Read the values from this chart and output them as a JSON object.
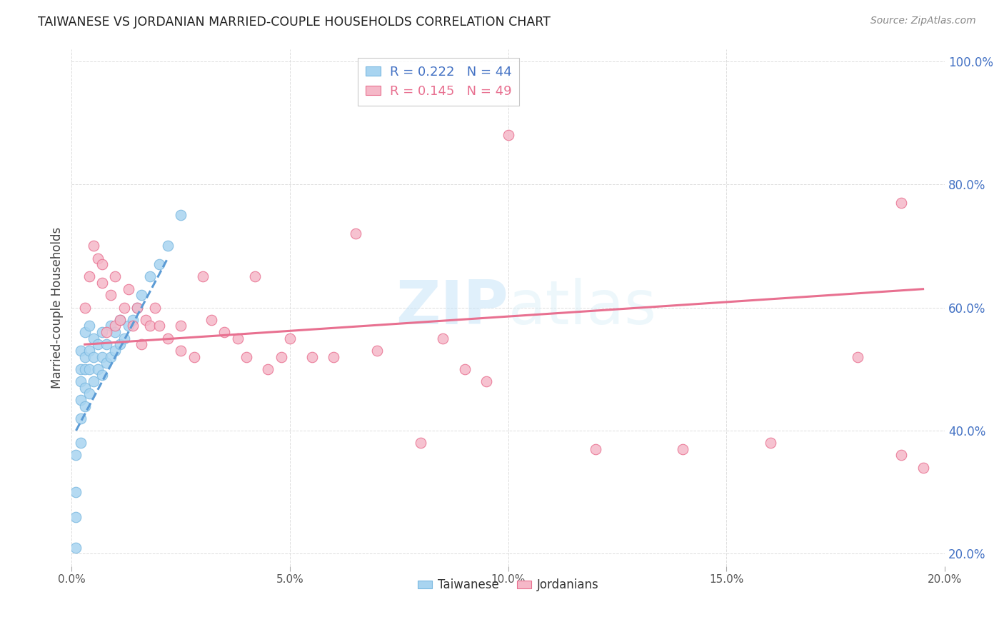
{
  "title": "TAIWANESE VS JORDANIAN MARRIED-COUPLE HOUSEHOLDS CORRELATION CHART",
  "source": "Source: ZipAtlas.com",
  "ylabel": "Married-couple Households",
  "xlim": [
    0.0,
    0.2
  ],
  "ylim": [
    0.18,
    1.02
  ],
  "xtick_values": [
    0.0,
    0.05,
    0.1,
    0.15,
    0.2
  ],
  "xtick_labels": [
    "0.0%",
    "5.0%",
    "10.0%",
    "15.0%",
    "20.0%"
  ],
  "ytick_values": [
    0.2,
    0.4,
    0.6,
    0.8,
    1.0
  ],
  "ytick_labels": [
    "20.0%",
    "40.0%",
    "60.0%",
    "80.0%",
    "100.0%"
  ],
  "watermark": "ZIPatlas",
  "taiwanese_color": "#A8D4F0",
  "jordanian_color": "#F5B8C8",
  "taiwanese_edge_color": "#7AB8E0",
  "jordanian_edge_color": "#E87090",
  "taiwanese_line_color": "#5B9BD5",
  "jordanian_line_color": "#E87090",
  "legend_r1_color": "#4472C4",
  "legend_n1_color": "#4472C4",
  "legend_r2_color": "#E87090",
  "legend_n2_color": "#E87090",
  "ytick_color": "#4472C4",
  "xtick_color": "#555555",
  "title_color": "#222222",
  "source_color": "#888888",
  "grid_color": "#DDDDDD",
  "background_color": "#FFFFFF",
  "taiwanese_x": [
    0.001,
    0.001,
    0.001,
    0.001,
    0.002,
    0.002,
    0.002,
    0.002,
    0.002,
    0.002,
    0.003,
    0.003,
    0.003,
    0.003,
    0.003,
    0.004,
    0.004,
    0.004,
    0.004,
    0.005,
    0.005,
    0.005,
    0.006,
    0.006,
    0.007,
    0.007,
    0.007,
    0.008,
    0.008,
    0.009,
    0.009,
    0.01,
    0.01,
    0.011,
    0.011,
    0.012,
    0.013,
    0.014,
    0.015,
    0.016,
    0.018,
    0.02,
    0.022,
    0.025
  ],
  "taiwanese_y": [
    0.21,
    0.26,
    0.3,
    0.36,
    0.38,
    0.42,
    0.45,
    0.48,
    0.5,
    0.53,
    0.44,
    0.47,
    0.5,
    0.52,
    0.56,
    0.46,
    0.5,
    0.53,
    0.57,
    0.48,
    0.52,
    0.55,
    0.5,
    0.54,
    0.49,
    0.52,
    0.56,
    0.51,
    0.54,
    0.52,
    0.57,
    0.53,
    0.56,
    0.54,
    0.58,
    0.55,
    0.57,
    0.58,
    0.6,
    0.62,
    0.65,
    0.67,
    0.7,
    0.75
  ],
  "jordanian_x": [
    0.003,
    0.004,
    0.005,
    0.006,
    0.007,
    0.007,
    0.008,
    0.009,
    0.01,
    0.01,
    0.011,
    0.012,
    0.013,
    0.014,
    0.015,
    0.016,
    0.017,
    0.018,
    0.019,
    0.02,
    0.022,
    0.025,
    0.025,
    0.028,
    0.03,
    0.032,
    0.035,
    0.038,
    0.04,
    0.042,
    0.045,
    0.048,
    0.05,
    0.055,
    0.06,
    0.065,
    0.07,
    0.08,
    0.085,
    0.09,
    0.095,
    0.1,
    0.12,
    0.14,
    0.16,
    0.18,
    0.19,
    0.195,
    0.19
  ],
  "jordanian_y": [
    0.6,
    0.65,
    0.7,
    0.68,
    0.64,
    0.67,
    0.56,
    0.62,
    0.57,
    0.65,
    0.58,
    0.6,
    0.63,
    0.57,
    0.6,
    0.54,
    0.58,
    0.57,
    0.6,
    0.57,
    0.55,
    0.57,
    0.53,
    0.52,
    0.65,
    0.58,
    0.56,
    0.55,
    0.52,
    0.65,
    0.5,
    0.52,
    0.55,
    0.52,
    0.52,
    0.72,
    0.53,
    0.38,
    0.55,
    0.5,
    0.48,
    0.88,
    0.37,
    0.37,
    0.38,
    0.52,
    0.36,
    0.34,
    0.77
  ],
  "tw_line_x": [
    0.001,
    0.022
  ],
  "jo_line_x": [
    0.003,
    0.195
  ],
  "tw_line_y": [
    0.4,
    0.68
  ],
  "jo_line_y": [
    0.54,
    0.63
  ]
}
